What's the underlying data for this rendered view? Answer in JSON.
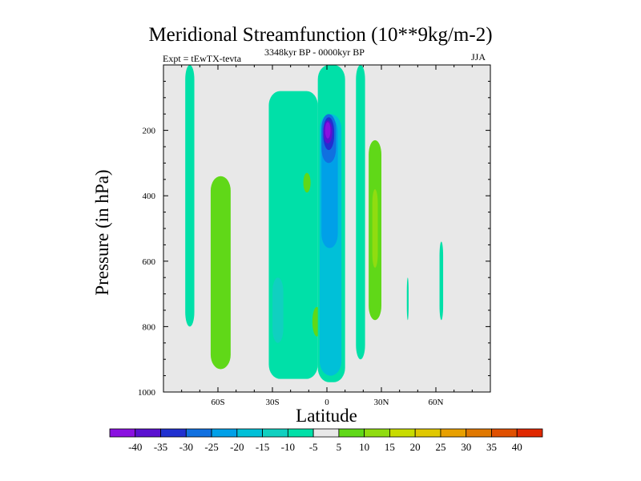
{
  "chart_data": {
    "type": "filled-contour",
    "title": "Meridional Streamfunction (10**9kg/m-2)",
    "left_label": "Expt = tEwTX-tevta",
    "center_label": "3348kyr BP - 0000kyr BP",
    "right_label": "JJA",
    "xlabel": "Latitude",
    "ylabel": "Pressure (in hPa)",
    "xlim": [
      -90,
      90
    ],
    "ylim": [
      1000,
      0
    ],
    "x_ticks": [
      {
        "value": -60,
        "label": "60S"
      },
      {
        "value": -30,
        "label": "30S"
      },
      {
        "value": 0,
        "label": "0"
      },
      {
        "value": 30,
        "label": "30N"
      },
      {
        "value": 60,
        "label": "60N"
      }
    ],
    "y_ticks": [
      {
        "value": 200,
        "label": "200"
      },
      {
        "value": 400,
        "label": "400"
      },
      {
        "value": 600,
        "label": "600"
      },
      {
        "value": 800,
        "label": "800"
      },
      {
        "value": 1000,
        "label": "1000"
      }
    ],
    "background_color": "#e8e8e8",
    "colorbar": {
      "levels": [
        -40,
        -35,
        -30,
        -25,
        -20,
        -15,
        -10,
        -5,
        5,
        10,
        15,
        20,
        25,
        30,
        35,
        40
      ],
      "labels": [
        "-40",
        "-35",
        "-30",
        "-25",
        "-20",
        "-15",
        "-10",
        "-5",
        "5",
        "10",
        "15",
        "20",
        "25",
        "30",
        "35",
        "40"
      ],
      "colors": [
        "#8a10e0",
        "#5a10d0",
        "#2030d0",
        "#1070e0",
        "#00a0e8",
        "#00c0d8",
        "#10d0c0",
        "#00e0a8",
        "#e8e8e8",
        "#60d818",
        "#90dc10",
        "#c8dc00",
        "#e0c800",
        "#e8a000",
        "#e07800",
        "#e05000",
        "#e02800"
      ]
    },
    "regions": [
      {
        "name": "band-70s",
        "color": "#00e0a8",
        "lat": [
          -78,
          -73
        ],
        "pres": [
          0,
          800
        ]
      },
      {
        "name": "band-55s",
        "color": "#60d818",
        "lat": [
          -64,
          -53
        ],
        "pres": [
          340,
          930
        ]
      },
      {
        "name": "band-25s-cyan",
        "color": "#00e0a8",
        "lat": [
          -32,
          -5
        ],
        "pres": [
          80,
          960
        ]
      },
      {
        "name": "band-20s-blue",
        "color": "#10d0c0",
        "lat": [
          -30,
          -24
        ],
        "pres": [
          650,
          850
        ]
      },
      {
        "name": "blob-12s",
        "color": "#60d818",
        "lat": [
          -13,
          -9
        ],
        "pres": [
          330,
          390
        ]
      },
      {
        "name": "blob-6s",
        "color": "#60d818",
        "lat": [
          -8,
          -3
        ],
        "pres": [
          740,
          830
        ]
      },
      {
        "name": "equator-column",
        "color": "#00e0a8",
        "lat": [
          -5,
          10
        ],
        "pres": [
          0,
          970
        ]
      },
      {
        "name": "equator-blue",
        "color": "#00c0d8",
        "lat": [
          -4,
          8
        ],
        "pres": [
          150,
          950
        ]
      },
      {
        "name": "equator-mid",
        "color": "#00a0e8",
        "lat": [
          -3,
          6
        ],
        "pres": [
          160,
          560
        ]
      },
      {
        "name": "equator-core1",
        "color": "#1070e0",
        "lat": [
          -3,
          5
        ],
        "pres": [
          150,
          300
        ]
      },
      {
        "name": "equator-core2",
        "color": "#2030d0",
        "lat": [
          -2,
          4
        ],
        "pres": [
          160,
          260
        ]
      },
      {
        "name": "equator-core3",
        "color": "#5a10d0",
        "lat": [
          -2,
          3
        ],
        "pres": [
          170,
          240
        ]
      },
      {
        "name": "equator-core4",
        "color": "#8a10e0",
        "lat": [
          -1,
          2
        ],
        "pres": [
          175,
          225
        ]
      },
      {
        "name": "band-18n",
        "color": "#00e0a8",
        "lat": [
          16,
          21
        ],
        "pres": [
          0,
          900
        ]
      },
      {
        "name": "band-28n",
        "color": "#60d818",
        "lat": [
          23,
          30
        ],
        "pres": [
          230,
          780
        ]
      },
      {
        "name": "band-28n-inner",
        "color": "#90dc10",
        "lat": [
          25,
          28
        ],
        "pres": [
          380,
          620
        ]
      },
      {
        "name": "sliver-45n",
        "color": "#00e0a8",
        "lat": [
          44,
          45
        ],
        "pres": [
          650,
          780
        ]
      },
      {
        "name": "sliver-63n",
        "color": "#00e0a8",
        "lat": [
          62,
          64
        ],
        "pres": [
          540,
          780
        ]
      }
    ]
  }
}
